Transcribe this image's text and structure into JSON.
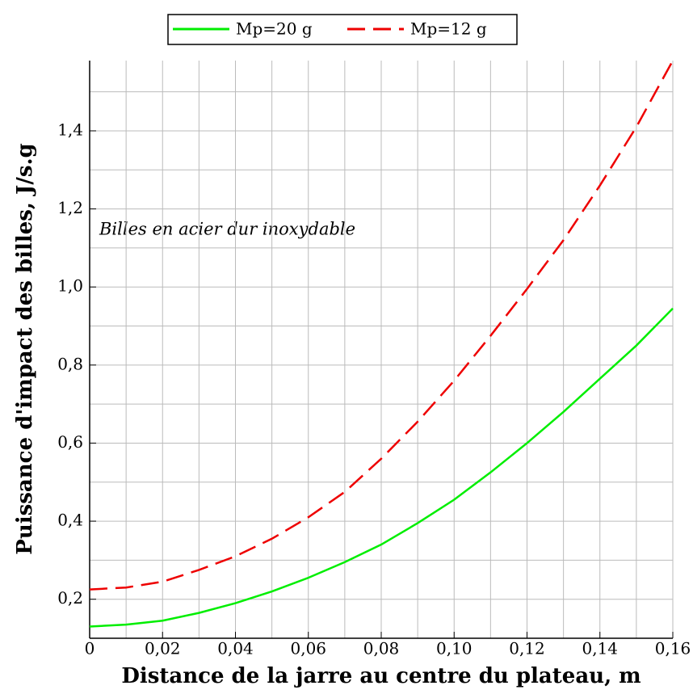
{
  "chart_data": {
    "type": "line",
    "xlabel": "Distance de la jarre au centre du plateau, m",
    "ylabel": "Puissance d'impact des billes, J/s.g",
    "annotation": "Billes en acier dur inoxydable",
    "x": [
      0,
      0.01,
      0.02,
      0.03,
      0.04,
      0.05,
      0.06,
      0.07,
      0.08,
      0.09,
      0.1,
      0.11,
      0.12,
      0.13,
      0.14,
      0.15,
      0.16
    ],
    "series": [
      {
        "name": "Mp=20 g",
        "color": "#00ee00",
        "dash": false,
        "values": [
          0.13,
          0.135,
          0.145,
          0.165,
          0.19,
          0.22,
          0.255,
          0.295,
          0.34,
          0.395,
          0.455,
          0.525,
          0.6,
          0.68,
          0.765,
          0.85,
          0.945
        ]
      },
      {
        "name": "Mp=12 g",
        "color": "#ee0000",
        "dash": true,
        "values": [
          0.225,
          0.23,
          0.245,
          0.275,
          0.31,
          0.355,
          0.41,
          0.475,
          0.56,
          0.655,
          0.76,
          0.875,
          0.995,
          1.12,
          1.26,
          1.41,
          1.58
        ]
      }
    ],
    "xlim": [
      0,
      0.16
    ],
    "ylim": [
      0.1,
      1.58
    ],
    "xticks": [
      0,
      {
        "value": 0.02,
        "label": "0,02"
      },
      {
        "value": 0.04,
        "label": "0,04"
      },
      {
        "value": 0.06,
        "label": "0,06"
      },
      {
        "value": 0.08,
        "label": "0,08"
      },
      {
        "value": 0.1,
        "label": "0,10"
      },
      {
        "value": 0.12,
        "label": "0,12"
      },
      {
        "value": 0.14,
        "label": "0,14"
      },
      {
        "value": 0.16,
        "label": "0,16"
      }
    ],
    "xminorticks": [
      0.01,
      0.03,
      0.05,
      0.07,
      0.09,
      0.11,
      0.13,
      0.15
    ],
    "yticks": [
      {
        "value": 0.2,
        "label": "0,2"
      },
      {
        "value": 0.4,
        "label": "0,4"
      },
      {
        "value": 0.6,
        "label": "0,6"
      },
      {
        "value": 0.8,
        "label": "0,8"
      },
      {
        "value": 1.0,
        "label": "1,0"
      },
      {
        "value": 1.2,
        "label": "1,2"
      },
      {
        "value": 1.4,
        "label": "1,4"
      }
    ],
    "yminorticks": [
      0.1,
      0.3,
      0.5,
      0.7,
      0.9,
      1.1,
      1.3,
      1.5
    ],
    "grid": true,
    "legend": "top"
  }
}
